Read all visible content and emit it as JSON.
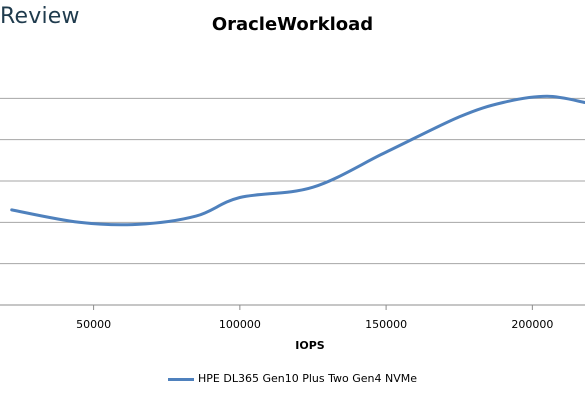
{
  "brand": {
    "text": "Review"
  },
  "chart_data": {
    "type": "line",
    "title": "OracleWorkload",
    "xlabel": "IOPS",
    "ylabel": "",
    "xlim": [
      18000,
      218000
    ],
    "ylim": [
      0,
      6
    ],
    "x_ticks": [
      50000,
      100000,
      150000,
      200000
    ],
    "y_gridlines": [
      0,
      1,
      2,
      3,
      4,
      5
    ],
    "grid": true,
    "legend": "bottom",
    "series": [
      {
        "name": "HPE DL365 Gen10 Plus Two Gen4 NVMe",
        "color": "#4f81bd",
        "x": [
          22000,
          45000,
          65000,
          85000,
          100000,
          125000,
          150000,
          175000,
          190000,
          205000,
          218000
        ],
        "y": [
          2.3,
          2.0,
          1.95,
          2.15,
          2.6,
          2.85,
          3.7,
          4.55,
          4.9,
          5.05,
          4.9
        ]
      }
    ]
  }
}
